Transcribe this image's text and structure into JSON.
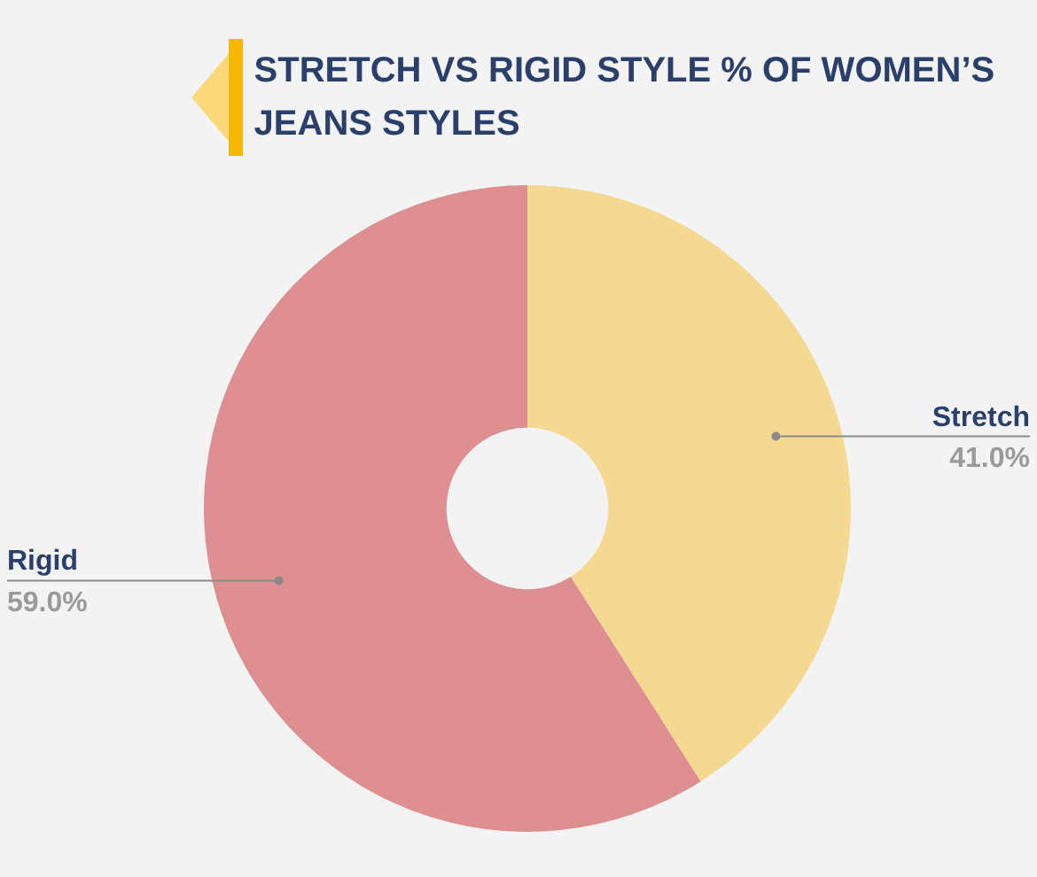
{
  "chart_data": {
    "type": "donut",
    "title": "STRETCH VS RIGID STYLE % OF WOMEN’S JEANS STYLES",
    "categories": [
      "Stretch",
      "Rigid"
    ],
    "values": [
      41.0,
      59.0
    ],
    "value_labels": [
      "41.0%",
      "59.0%"
    ],
    "colors": [
      "#f5d993",
      "#de8f92"
    ],
    "legend": false
  }
}
